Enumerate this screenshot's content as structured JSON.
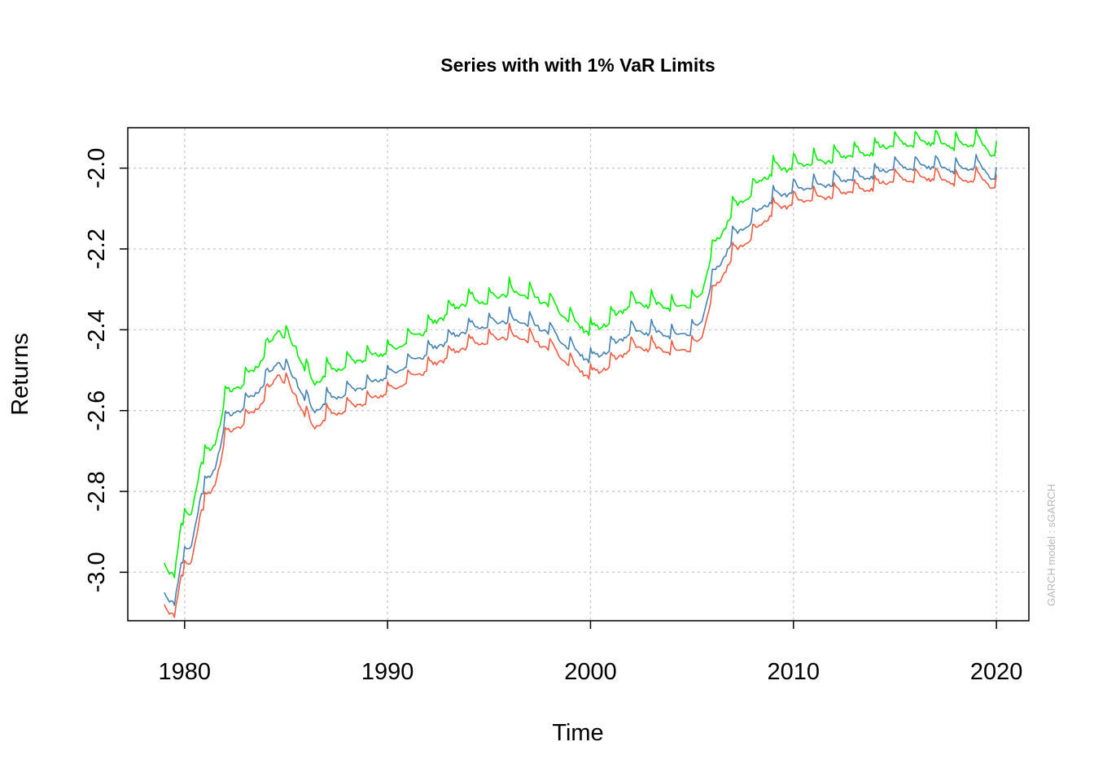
{
  "chart_data": {
    "type": "line",
    "title": "Series with with 1% VaR Limits",
    "xlabel": "Time",
    "ylabel": "Returns",
    "watermark": "GARCH model : sGARCH",
    "xlim": [
      1977.2,
      2021.6
    ],
    "ylim": [
      -3.12,
      -1.9
    ],
    "x_ticks": [
      1980,
      1990,
      2000,
      2010,
      2020
    ],
    "y_ticks": [
      -3.0,
      -2.8,
      -2.6,
      -2.4,
      -2.2,
      -2.0
    ],
    "y_tick_labels": [
      "-3.0",
      "-2.8",
      "-2.6",
      "-2.4",
      "-2.2",
      "-2.0"
    ],
    "grid": true,
    "x_start": 1979.0,
    "x_end": 2020.0,
    "points_per_year": 12,
    "series": [
      {
        "color": "#00ee00",
        "anchors_x": [
          1979.0,
          1979.5,
          1979.8,
          1980.3,
          1980.8,
          1981.5,
          1982.0,
          1983.0,
          1984.0,
          1984.6,
          1985.5,
          1986.3,
          1987.0,
          1988.0,
          1989.0,
          1990.0,
          1991.0,
          1992.0,
          1993.0,
          1994.0,
          1995.0,
          1996.0,
          1997.0,
          1998.0,
          1999.0,
          2000.0,
          2001.0,
          2002.0,
          2003.0,
          2004.0,
          2005.0,
          2005.5,
          2006.0,
          2006.5,
          2007.0,
          2008.0,
          2008.5,
          2009.0,
          2010.0,
          2011.0,
          2012.0,
          2013.0,
          2014.0,
          2015.0,
          2016.0,
          2017.0,
          2018.0,
          2019.0,
          2020.0
        ],
        "anchors_y": [
          -3.0,
          -3.0,
          -2.87,
          -2.86,
          -2.72,
          -2.68,
          -2.56,
          -2.52,
          -2.45,
          -2.39,
          -2.44,
          -2.53,
          -2.5,
          -2.48,
          -2.46,
          -2.45,
          -2.42,
          -2.39,
          -2.35,
          -2.32,
          -2.32,
          -2.3,
          -2.31,
          -2.33,
          -2.37,
          -2.4,
          -2.37,
          -2.33,
          -2.33,
          -2.34,
          -2.33,
          -2.3,
          -2.2,
          -2.15,
          -2.1,
          -2.05,
          -2.02,
          -2.0,
          -1.99,
          -1.98,
          -1.97,
          -1.96,
          -1.95,
          -1.93,
          -1.93,
          -1.93,
          -1.94,
          -1.93,
          -1.96
        ],
        "amplitude": 0.04,
        "noise": 0.012,
        "seed": 11
      },
      {
        "color": "#4682b4",
        "anchors_x": [
          1979.0,
          1979.5,
          1979.8,
          1980.3,
          1980.8,
          1981.5,
          1982.0,
          1983.0,
          1984.0,
          1984.6,
          1985.5,
          1986.3,
          1987.0,
          1988.0,
          1989.0,
          1990.0,
          1991.0,
          1992.0,
          1993.0,
          1994.0,
          1995.0,
          1996.0,
          1997.0,
          1998.0,
          1999.0,
          2000.0,
          2001.0,
          2002.0,
          2003.0,
          2004.0,
          2005.0,
          2005.5,
          2006.0,
          2006.5,
          2007.0,
          2008.0,
          2008.5,
          2009.0,
          2010.0,
          2011.0,
          2012.0,
          2013.0,
          2014.0,
          2015.0,
          2016.0,
          2017.0,
          2018.0,
          2019.0,
          2020.0
        ],
        "anchors_y": [
          -3.07,
          -3.07,
          -2.97,
          -2.94,
          -2.8,
          -2.74,
          -2.62,
          -2.58,
          -2.52,
          -2.47,
          -2.52,
          -2.6,
          -2.57,
          -2.55,
          -2.53,
          -2.51,
          -2.48,
          -2.45,
          -2.42,
          -2.39,
          -2.38,
          -2.37,
          -2.38,
          -2.4,
          -2.44,
          -2.47,
          -2.44,
          -2.4,
          -2.4,
          -2.41,
          -2.4,
          -2.37,
          -2.27,
          -2.22,
          -2.17,
          -2.12,
          -2.09,
          -2.07,
          -2.05,
          -2.04,
          -2.03,
          -2.02,
          -2.01,
          -1.99,
          -1.99,
          -1.99,
          -2.0,
          -1.99,
          -2.02
        ],
        "amplitude": 0.035,
        "noise": 0.01,
        "seed": 11
      },
      {
        "color": "#ee5c42",
        "anchors_x": [
          1979.0,
          1979.5,
          1979.8,
          1980.3,
          1980.8,
          1981.5,
          1982.0,
          1983.0,
          1984.0,
          1984.6,
          1985.5,
          1986.3,
          1987.0,
          1988.0,
          1989.0,
          1990.0,
          1991.0,
          1992.0,
          1993.0,
          1994.0,
          1995.0,
          1996.0,
          1997.0,
          1998.0,
          1999.0,
          2000.0,
          2001.0,
          2002.0,
          2003.0,
          2004.0,
          2005.0,
          2005.5,
          2006.0,
          2006.5,
          2007.0,
          2008.0,
          2008.5,
          2009.0,
          2010.0,
          2011.0,
          2012.0,
          2013.0,
          2014.0,
          2015.0,
          2016.0,
          2017.0,
          2018.0,
          2019.0,
          2020.0
        ],
        "anchors_y": [
          -3.1,
          -3.1,
          -3.0,
          -2.98,
          -2.84,
          -2.78,
          -2.66,
          -2.62,
          -2.56,
          -2.5,
          -2.56,
          -2.64,
          -2.61,
          -2.59,
          -2.57,
          -2.55,
          -2.52,
          -2.49,
          -2.46,
          -2.43,
          -2.42,
          -2.41,
          -2.42,
          -2.44,
          -2.48,
          -2.51,
          -2.48,
          -2.44,
          -2.44,
          -2.45,
          -2.44,
          -2.41,
          -2.31,
          -2.26,
          -2.21,
          -2.16,
          -2.13,
          -2.1,
          -2.08,
          -2.07,
          -2.06,
          -2.05,
          -2.04,
          -2.02,
          -2.02,
          -2.02,
          -2.03,
          -2.02,
          -2.04
        ],
        "amplitude": 0.035,
        "noise": 0.01,
        "seed": 11
      }
    ]
  }
}
